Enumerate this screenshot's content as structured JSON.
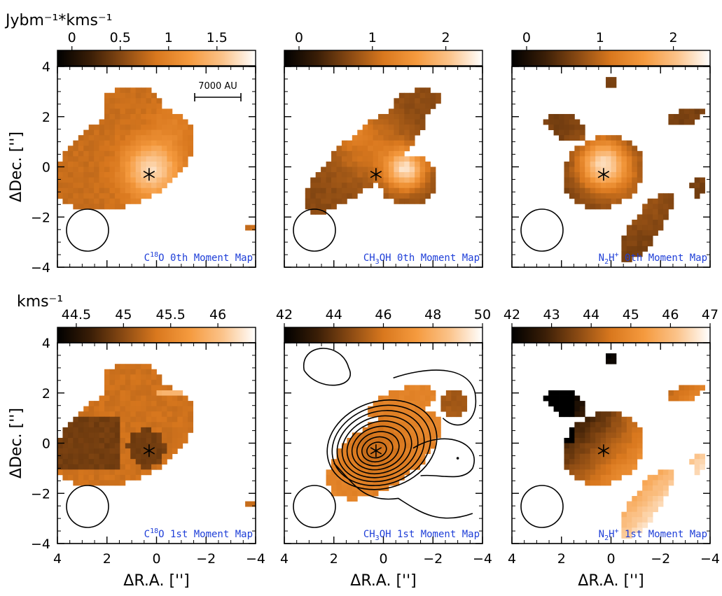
{
  "figure": {
    "units": {
      "top_row": "Jybm⁻¹*kms⁻¹",
      "bottom_row": "kms⁻¹"
    },
    "scale_bar_label": "7000 AU",
    "xlabel": "ΔR.A. ['']",
    "ylabel": "ΔDec. ['']",
    "colormap": [
      "#000000",
      "#3a1e07",
      "#8a4a13",
      "#d9781e",
      "#f59a3e",
      "#fbc38a",
      "#ffffff"
    ],
    "marker_symbol": "*"
  },
  "chart_data": [
    {
      "type": "heatmap",
      "panel": "top-left",
      "map_label": {
        "species": "C",
        "sup": "18",
        "rest": "O 0th Moment Map"
      },
      "colorbar": {
        "min": -0.15,
        "max": 1.9,
        "ticks": [
          0,
          0.5,
          1,
          1.5
        ],
        "tick_labels": [
          "0",
          "0.5",
          "1",
          "1.5"
        ]
      },
      "xlim": [
        4,
        -4
      ],
      "ylim": [
        -4,
        4
      ],
      "xticks": [
        4,
        2,
        0,
        -2,
        -4
      ],
      "xtick_labels": [
        "4",
        "2",
        "0",
        "−2",
        "−4"
      ],
      "yticks": [
        4,
        2,
        0,
        -2,
        -4
      ],
      "ytick_labels": [
        "4",
        "2",
        "0",
        "−2",
        "−4"
      ],
      "source_position": [
        0.3,
        -0.3
      ],
      "emission_peak": [
        0.2,
        -0.1
      ],
      "peak_value": 1.7,
      "description_level": "moderate-to-high integrated intensity across an elongated source",
      "show_scale_bar": true
    },
    {
      "type": "heatmap",
      "panel": "top-middle",
      "map_label": {
        "species": "CH",
        "sub": "3",
        "rest": "OH 0th Moment Map"
      },
      "colorbar": {
        "min": -0.2,
        "max": 2.5,
        "ticks": [
          0,
          1,
          2
        ],
        "tick_labels": [
          "0",
          "1",
          "2"
        ]
      },
      "xlim": [
        4,
        -4
      ],
      "ylim": [
        -4,
        4
      ],
      "xticks": [
        4,
        2,
        0,
        -2,
        -4
      ],
      "xtick_labels": [
        "4",
        "2",
        "0",
        "−2",
        "−4"
      ],
      "yticks": [
        4,
        2,
        0,
        -2,
        -4
      ],
      "ytick_labels": [
        "4",
        "2",
        "0",
        "−2",
        "−4"
      ],
      "source_position": [
        0.3,
        -0.3
      ],
      "emission_peaks": [
        [
          1.8,
          2.2
        ],
        [
          -0.9,
          -0.1
        ]
      ],
      "peak_value": 2.4
    },
    {
      "type": "heatmap",
      "panel": "top-right",
      "map_label": {
        "species": "N",
        "sub": "2",
        "rest": "H",
        "sup": "+",
        "tail": " 0th Moment Map"
      },
      "colorbar": {
        "min": -0.2,
        "max": 2.5,
        "ticks": [
          0,
          1,
          2
        ],
        "tick_labels": [
          "0",
          "1",
          "2"
        ]
      },
      "xlim": [
        4,
        -4
      ],
      "ylim": [
        -4,
        4
      ],
      "xticks": [
        4,
        2,
        0,
        -2,
        -4
      ],
      "xtick_labels": [
        "4",
        "2",
        "0",
        "−2",
        "−4"
      ],
      "yticks": [
        4,
        2,
        0,
        -2,
        -4
      ],
      "ytick_labels": [
        "4",
        "2",
        "0",
        "−2",
        "−4"
      ],
      "source_position": [
        0.3,
        -0.3
      ],
      "emission_peak": [
        0.3,
        0.1
      ],
      "peak_value": 2.3
    },
    {
      "type": "heatmap",
      "panel": "bottom-left",
      "map_label": {
        "species": "C",
        "sup": "18",
        "rest": "O 1st Moment Map"
      },
      "colorbar": {
        "min": 44.3,
        "max": 46.4,
        "ticks": [
          44.5,
          45,
          45.5,
          46
        ],
        "tick_labels": [
          "44.5",
          "45",
          "45.5",
          "46"
        ]
      },
      "xlim": [
        4,
        -4
      ],
      "ylim": [
        -4,
        4
      ],
      "xticks": [
        4,
        2,
        0,
        -2,
        -4
      ],
      "xtick_labels": [
        "4",
        "2",
        "0",
        "−2",
        "−4"
      ],
      "yticks": [
        4,
        2,
        0,
        -2,
        -4
      ],
      "ytick_labels": [
        "4",
        "2",
        "0",
        "−2",
        "−4"
      ],
      "source_position": [
        0.3,
        -0.3
      ],
      "velocity_typical": 45.3,
      "velocity_center": 44.9
    },
    {
      "type": "heatmap",
      "panel": "bottom-middle",
      "map_label": {
        "species": "CH",
        "sub": "3",
        "rest": "OH 1st Moment Map"
      },
      "colorbar": {
        "min": 42,
        "max": 50,
        "ticks": [
          42,
          44,
          46,
          48,
          50
        ],
        "tick_labels": [
          "42",
          "44",
          "46",
          "48",
          "50"
        ]
      },
      "xlim": [
        4,
        -4
      ],
      "ylim": [
        -4,
        4
      ],
      "xticks": [
        4,
        2,
        0,
        -2,
        -4
      ],
      "xtick_labels": [
        "4",
        "2",
        "0",
        "−2",
        "−4"
      ],
      "yticks": [
        4,
        2,
        0,
        -2,
        -4
      ],
      "ytick_labels": [
        "4",
        "2",
        "0",
        "−2",
        "−4"
      ],
      "source_position": [
        0.3,
        -0.3
      ],
      "velocity_typical": 46.5,
      "contours": {
        "center": [
          0.3,
          -0.3
        ],
        "levels": 9
      }
    },
    {
      "type": "heatmap",
      "panel": "bottom-right",
      "map_label": {
        "species": "N",
        "sub": "2",
        "rest": "H",
        "sup": "+",
        "tail": " 1st Moment Map"
      },
      "colorbar": {
        "min": 42,
        "max": 47,
        "ticks": [
          42,
          43,
          44,
          45,
          46,
          47
        ],
        "tick_labels": [
          "42",
          "43",
          "44",
          "45",
          "46",
          "47"
        ]
      },
      "xlim": [
        4,
        -4
      ],
      "ylim": [
        -4,
        4
      ],
      "xticks": [
        4,
        2,
        0,
        -2,
        -4
      ],
      "xtick_labels": [
        "4",
        "2",
        "0",
        "−2",
        "−4"
      ],
      "yticks": [
        4,
        2,
        0,
        -2,
        -4
      ],
      "ytick_labels": [
        "4",
        "2",
        "0",
        "−2",
        "−4"
      ],
      "source_position": [
        0.3,
        -0.3
      ],
      "velocity_typical": 44.5,
      "velocity_gradient": [
        43.0,
        46.0
      ]
    }
  ]
}
